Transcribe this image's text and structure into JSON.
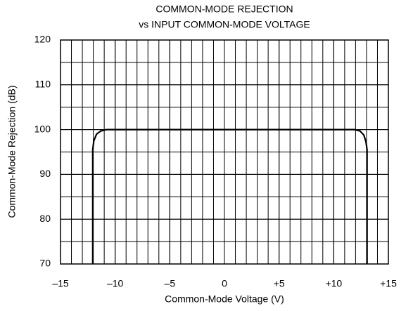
{
  "chart_data": {
    "type": "line",
    "title": "COMMON-MODE REJECTION",
    "subtitle": "vs INPUT COMMON-MODE VOLTAGE",
    "xlabel": "Common-Mode Voltage (V)",
    "ylabel": "Common-Mode Rejection (dB)",
    "x": [
      -12.05,
      -12.05,
      -11.95,
      -11.7,
      -11.3,
      -10.8,
      -10.3,
      11.9,
      12.4,
      12.75,
      12.95,
      13.05,
      13.05
    ],
    "values": [
      70,
      95.5,
      97.5,
      99.0,
      99.7,
      100,
      100,
      100,
      99.7,
      98.8,
      97.3,
      95.5,
      70
    ],
    "color": "#000000",
    "xlim": [
      -15,
      15
    ],
    "xticks": [
      {
        "value": -15,
        "label": "–15"
      },
      {
        "value": -10,
        "label": "–10"
      },
      {
        "value": -5,
        "label": "–5"
      },
      0,
      {
        "value": 5,
        "label": "+5"
      },
      {
        "value": 10,
        "label": "+10"
      },
      {
        "value": 15,
        "label": "+15"
      }
    ],
    "ylim": [
      70,
      120
    ],
    "yticks": [
      70,
      80,
      90,
      100,
      110,
      120
    ],
    "grid": true,
    "x_minor_step": 1,
    "y_minor_step": 5
  }
}
